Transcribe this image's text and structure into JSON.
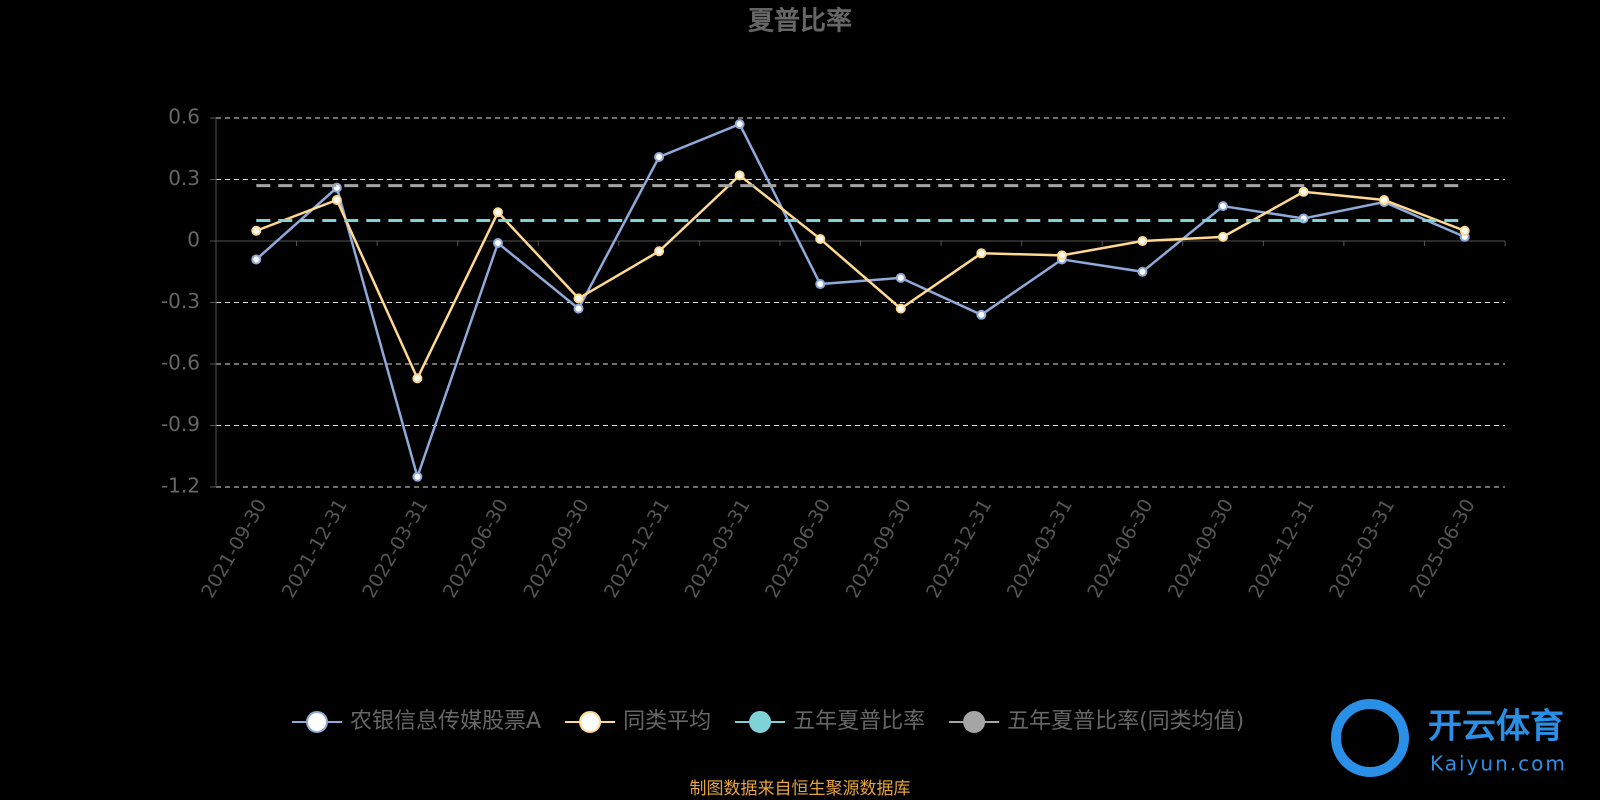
{
  "chart_data": {
    "type": "line",
    "title": "夏普比率",
    "categories": [
      "2021-09-30",
      "2021-12-31",
      "2022-03-31",
      "2022-06-30",
      "2022-09-30",
      "2022-12-31",
      "2023-03-31",
      "2023-06-30",
      "2023-09-30",
      "2023-12-31",
      "2024-03-31",
      "2024-06-30",
      "2024-09-30",
      "2024-12-31",
      "2025-03-31",
      "2025-06-30"
    ],
    "series": [
      {
        "name": "农银信息传媒股票A",
        "color": "#8fa9d8",
        "markers": true,
        "dashed": false,
        "values": [
          -0.09,
          0.26,
          -1.15,
          -0.01,
          -0.33,
          0.41,
          0.57,
          -0.21,
          -0.18,
          -0.36,
          -0.09,
          -0.15,
          0.17,
          0.11,
          0.19,
          0.02
        ]
      },
      {
        "name": "同类平均",
        "color": "#ffd98f",
        "markers": true,
        "dashed": false,
        "values": [
          0.05,
          0.2,
          -0.67,
          0.14,
          -0.28,
          -0.05,
          0.32,
          0.01,
          -0.33,
          -0.06,
          -0.07,
          0.0,
          0.02,
          0.24,
          0.2,
          0.05
        ]
      },
      {
        "name": "五年夏普比率",
        "color": "#7fd3d6",
        "markers": false,
        "dashed": true,
        "values": [
          0.1,
          0.1,
          0.1,
          0.1,
          0.1,
          0.1,
          0.1,
          0.1,
          0.1,
          0.1,
          0.1,
          0.1,
          0.1,
          0.1,
          0.1,
          0.1
        ]
      },
      {
        "name": "五年夏普比率(同类均值)",
        "color": "#a5a5a5",
        "markers": false,
        "dashed": true,
        "values": [
          0.27,
          0.27,
          0.27,
          0.27,
          0.27,
          0.27,
          0.27,
          0.27,
          0.27,
          0.27,
          0.27,
          0.27,
          0.27,
          0.27,
          0.27,
          0.27
        ]
      }
    ],
    "ylim": [
      -1.2,
      0.6
    ],
    "yticks": [
      0.6,
      0.3,
      0,
      -0.3,
      -0.6,
      -0.9,
      -1.2
    ],
    "grid": true,
    "legend": "bottom",
    "source": "制图数据来自恒生聚源数据库"
  },
  "watermark": {
    "text": "开云体育",
    "subtext": "Kaiyun.com"
  }
}
